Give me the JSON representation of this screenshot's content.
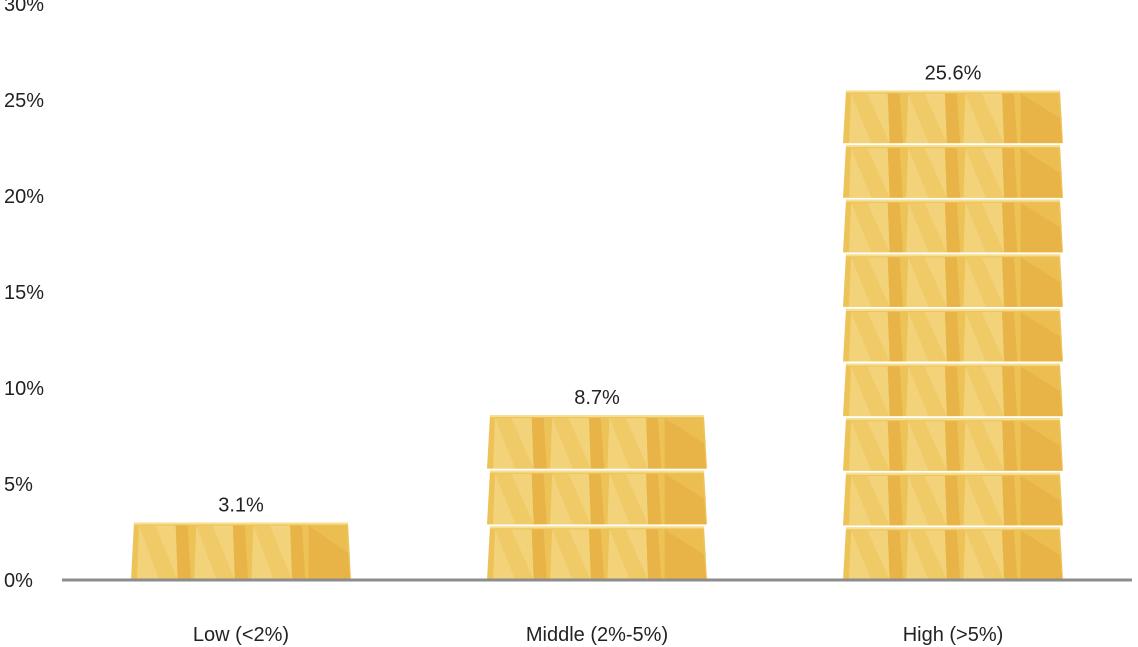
{
  "chart_data": {
    "type": "bar",
    "title": "",
    "xlabel": "",
    "ylabel": "",
    "categories": [
      "Low (<2%)",
      "Middle (2%-5%)",
      "High (>5%)"
    ],
    "values": [
      3.1,
      8.7,
      25.6
    ],
    "value_labels": [
      "3.1%",
      "8.7%",
      "25.6%"
    ],
    "ylim": [
      0,
      30
    ],
    "yticks": [
      0,
      5,
      10,
      15,
      20,
      25,
      30
    ],
    "ytick_labels": [
      "0%",
      "5%",
      "10%",
      "15%",
      "20%",
      "25%",
      "30%"
    ],
    "grid": false,
    "legend": "none",
    "mark_style": "stacked gold bars",
    "colors": {
      "bar_light": "#F2D37A",
      "bar_mid": "#EDC257",
      "bar_dark": "#E9B447",
      "bar_edge": "#F6DE92",
      "axis": "#8C8C8C",
      "text": "#222222"
    }
  }
}
